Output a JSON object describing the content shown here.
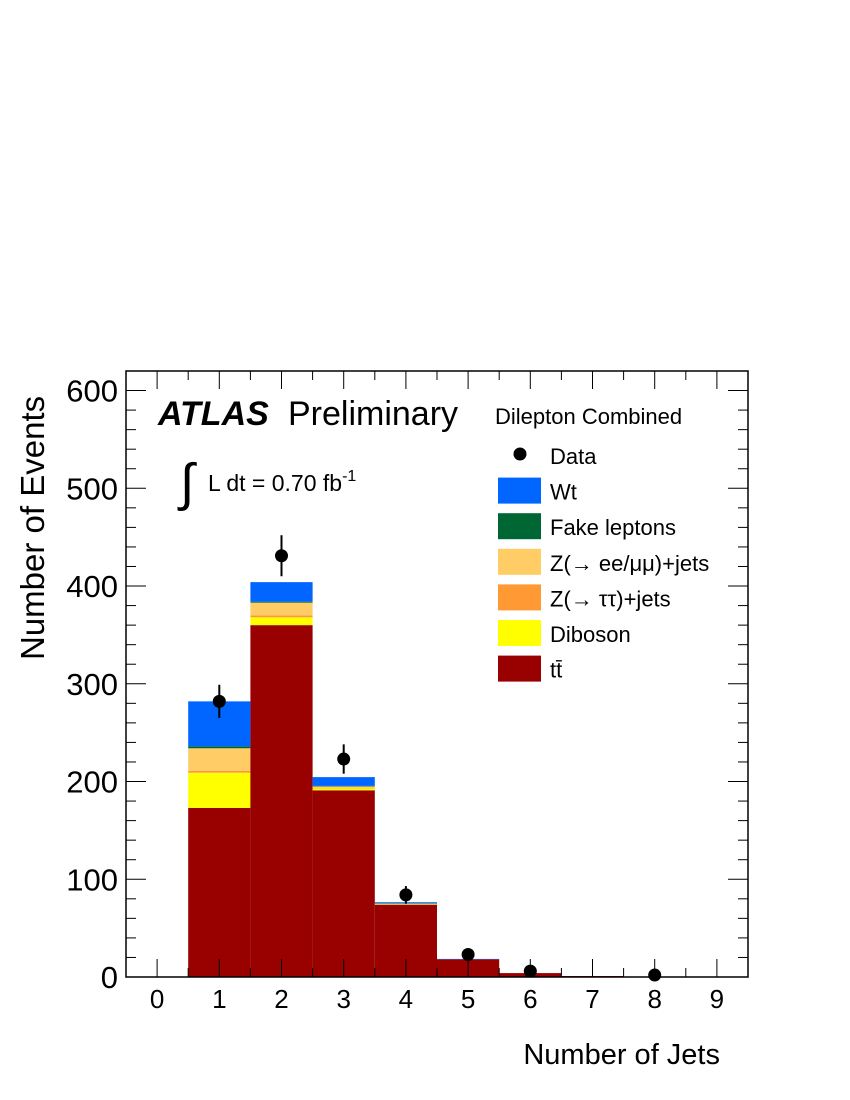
{
  "chart_data": {
    "type": "bar",
    "stacked": true,
    "xlabel": "Number of Jets",
    "ylabel": "Number of Events",
    "xlim": [
      -0.5,
      9.5
    ],
    "ylim": [
      0,
      620
    ],
    "x_ticks": [
      "0",
      "1",
      "2",
      "3",
      "4",
      "5",
      "6",
      "7",
      "8",
      "9"
    ],
    "y_ticks": [
      "0",
      "100",
      "200",
      "300",
      "400",
      "500",
      "600"
    ],
    "categories": [
      0,
      1,
      2,
      3,
      4,
      5,
      6,
      7,
      8,
      9
    ],
    "atlas_label": "ATLAS",
    "preliminary_label": "Preliminary",
    "luminosity_label": "L dt = 0.70 fb",
    "luminosity_superscript": "-1",
    "integral_symbol": "∫",
    "channel_label": "Dilepton Combined",
    "legend_position": "top-right",
    "series": [
      {
        "name": "tt̄",
        "color": "#990000",
        "values": [
          0,
          173,
          360,
          191,
          74,
          18,
          4,
          1,
          0,
          0
        ]
      },
      {
        "name": "Diboson",
        "color": "#ffff00",
        "values": [
          0,
          36,
          8,
          2,
          0.5,
          0,
          0,
          0,
          0,
          0
        ]
      },
      {
        "name": "Z(→ ττ)+jets",
        "color": "#ff9933",
        "values": [
          0,
          2,
          2,
          0.5,
          0.2,
          0,
          0,
          0,
          0,
          0
        ]
      },
      {
        "name": "Z(→ ee/μμ)+jets",
        "color": "#ffcc66",
        "values": [
          0,
          23,
          13,
          1.5,
          0.3,
          0,
          0,
          0,
          0,
          0
        ]
      },
      {
        "name": "Fake leptons",
        "color": "#006633",
        "values": [
          0,
          2,
          1,
          0.5,
          0.5,
          0,
          0,
          0,
          0,
          0
        ]
      },
      {
        "name": "Wt",
        "color": "#0066ff",
        "values": [
          0,
          46,
          20,
          9,
          1,
          0.5,
          0,
          0,
          0,
          0
        ]
      }
    ],
    "data_points": {
      "name": "Data",
      "x": [
        1,
        2,
        3,
        4,
        5,
        6,
        8
      ],
      "y": [
        282,
        431,
        223,
        84,
        23,
        6,
        2
      ],
      "err": [
        17,
        21,
        15,
        9,
        5,
        2.5,
        1.4
      ]
    },
    "legend_order": [
      "Data",
      "Wt",
      "Fake leptons",
      "Z(→ ee/μμ)+jets",
      "Z(→ ττ)+jets",
      "Diboson",
      "tt̄"
    ]
  }
}
